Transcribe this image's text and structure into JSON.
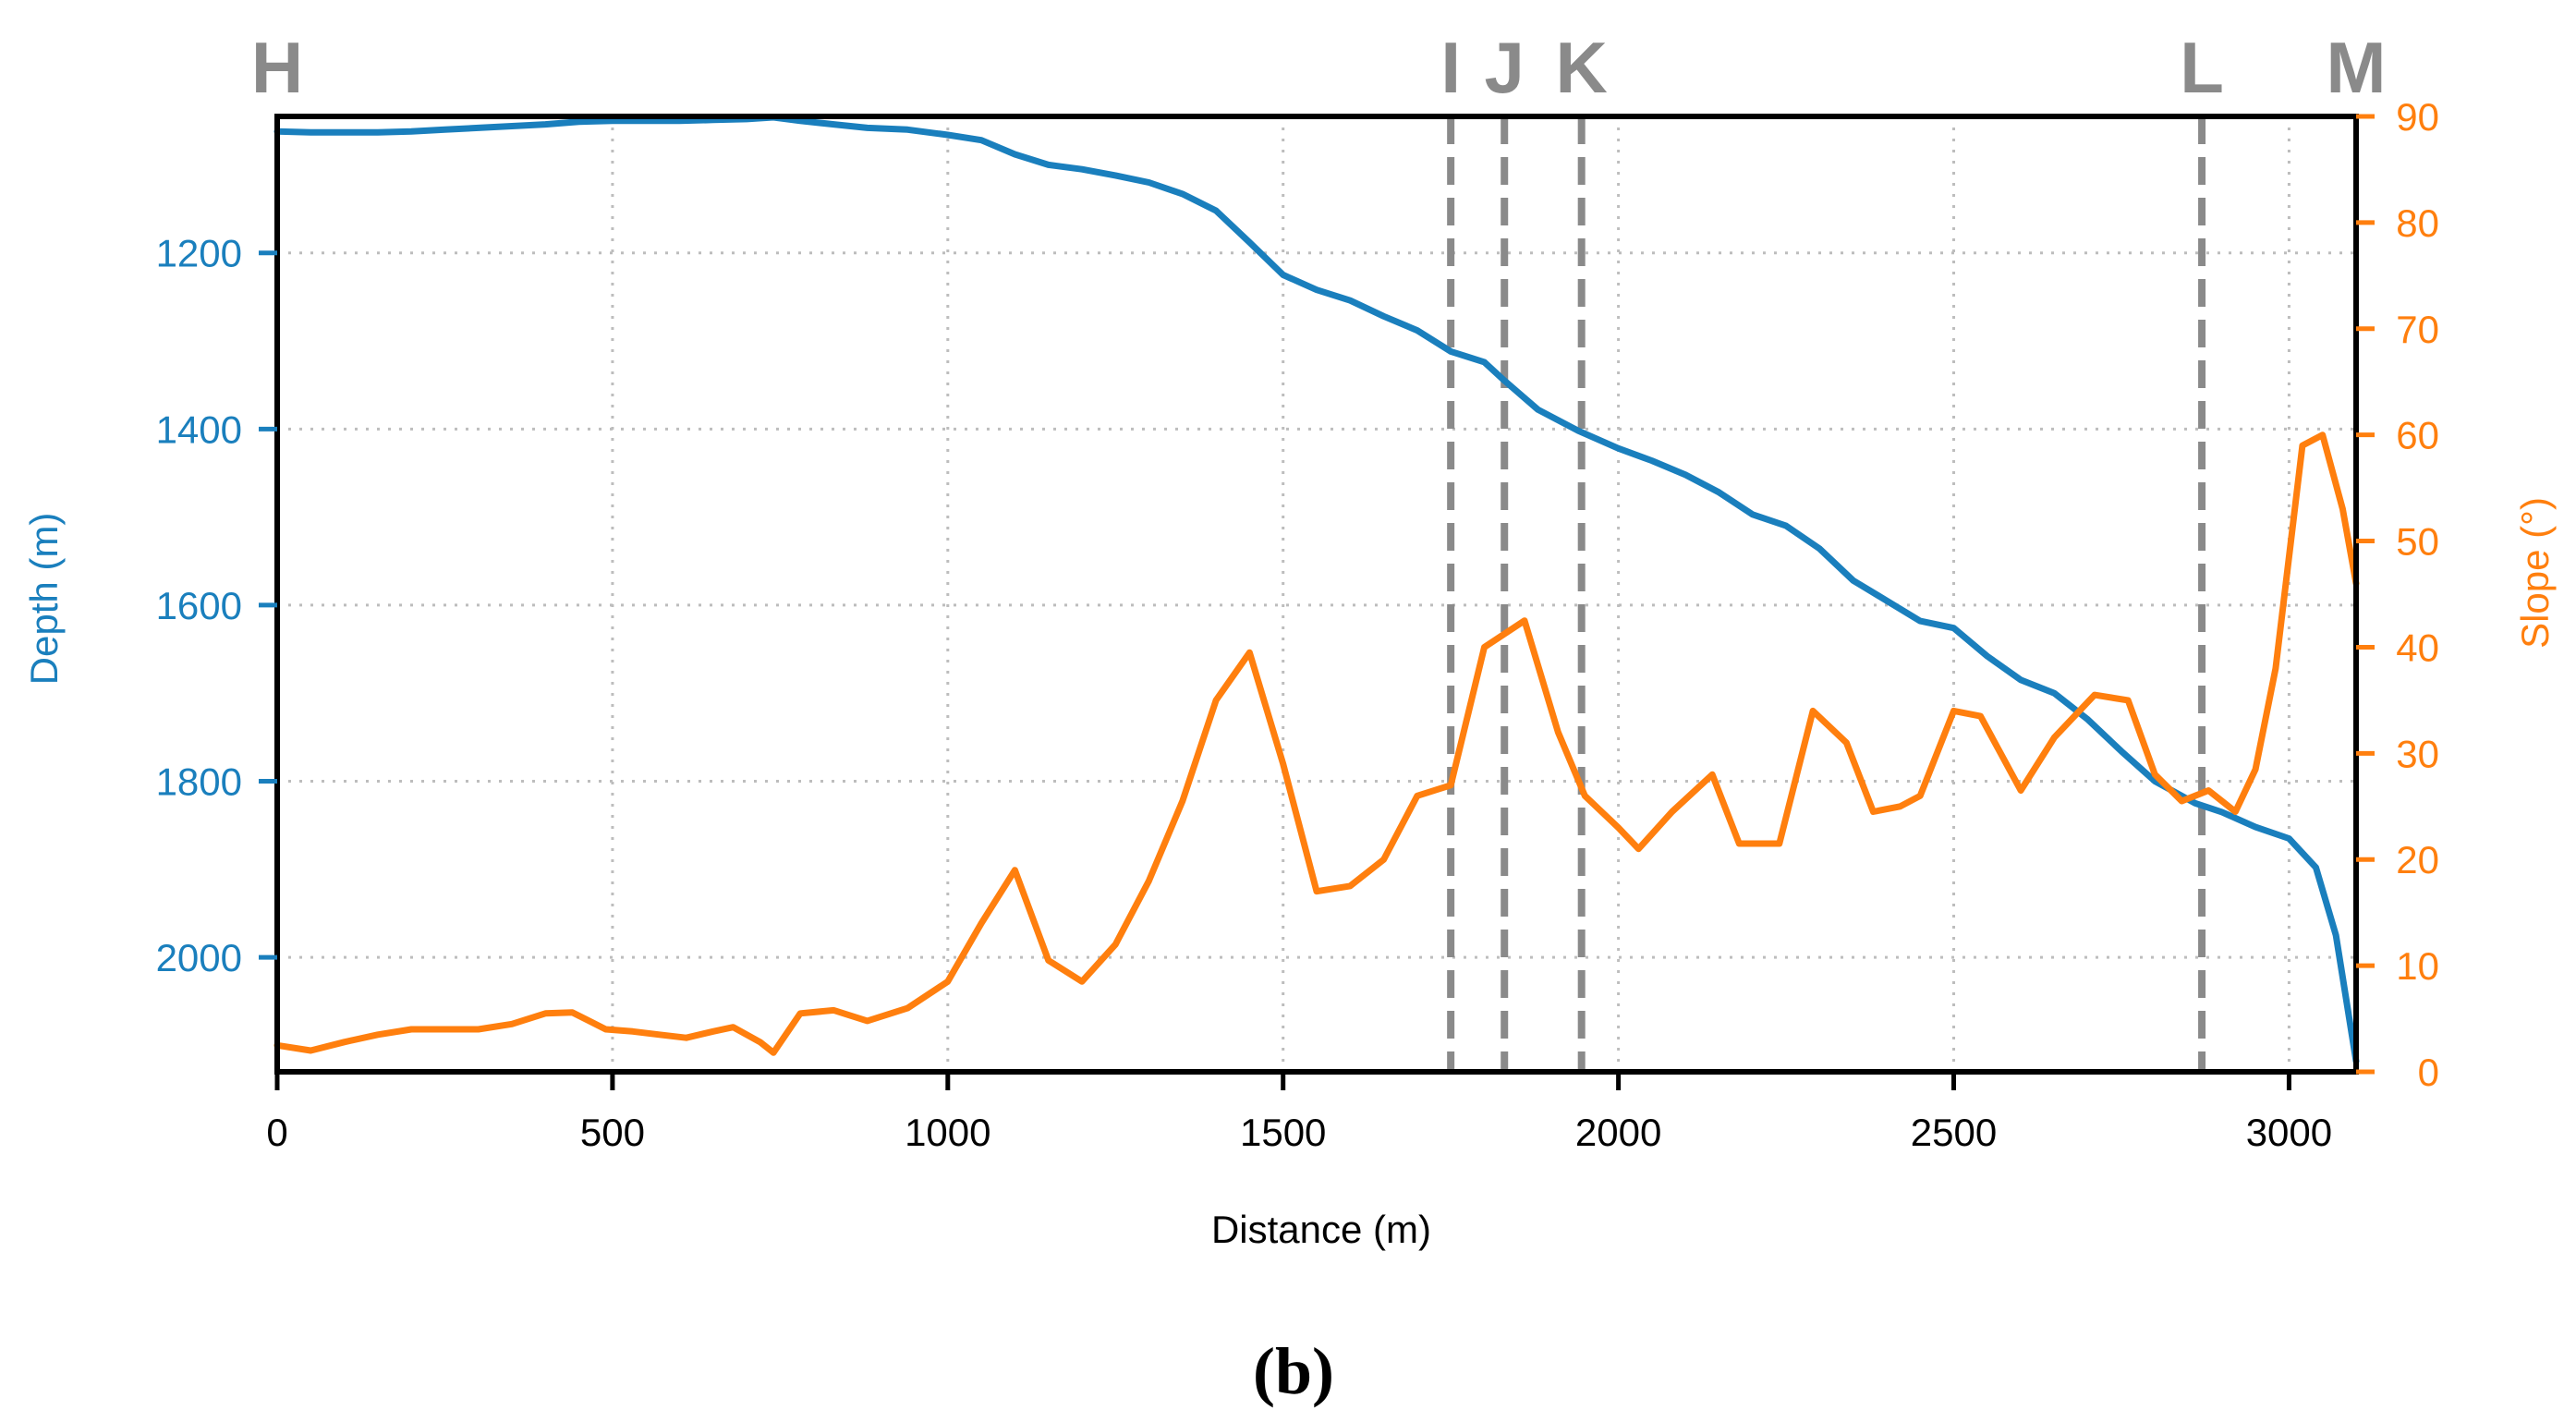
{
  "chart_data": {
    "type": "line",
    "panel_label": "(b)",
    "xlabel": "Distance (m)",
    "ylabel_left": "Depth (m)",
    "ylabel_right": "Slope (°)",
    "xlim": [
      0,
      3100
    ],
    "ylim_left_depth": [
      1045,
      2130
    ],
    "ylim_right_slope": [
      0,
      90
    ],
    "x_ticks": [
      "0",
      "500",
      "1000",
      "1500",
      "2000",
      "2500",
      "3000"
    ],
    "x_tick_values": [
      0,
      500,
      1000,
      1500,
      2000,
      2500,
      3000
    ],
    "left_ticks": [
      "1200",
      "1400",
      "1600",
      "1800",
      "2000"
    ],
    "left_tick_values": [
      1200,
      1400,
      1600,
      1800,
      2000
    ],
    "right_ticks": [
      "0",
      "10",
      "20",
      "30",
      "40",
      "50",
      "60",
      "70",
      "80",
      "90"
    ],
    "right_tick_values": [
      0,
      10,
      20,
      30,
      40,
      50,
      60,
      70,
      80,
      90
    ],
    "grid": true,
    "colors": {
      "depth": "#1a7fbd",
      "slope": "#ff7f0e",
      "markers": "#8a8a8a",
      "grid": "#bdbdbd",
      "frame": "#000000"
    },
    "markers": [
      {
        "label": "H",
        "x": 0,
        "line": false
      },
      {
        "label": "I",
        "x": 1750,
        "line": true
      },
      {
        "label": "J",
        "x": 1830,
        "line": true
      },
      {
        "label": "K",
        "x": 1945,
        "line": true
      },
      {
        "label": "L",
        "x": 2870,
        "line": true
      },
      {
        "label": "M",
        "x": 3100,
        "line": false
      }
    ],
    "series": [
      {
        "name": "Depth",
        "axis": "left",
        "x": [
          0,
          50,
          100,
          150,
          200,
          250,
          300,
          350,
          400,
          450,
          500,
          550,
          600,
          650,
          700,
          740,
          780,
          830,
          880,
          940,
          1000,
          1050,
          1100,
          1150,
          1200,
          1250,
          1300,
          1350,
          1400,
          1450,
          1500,
          1550,
          1600,
          1650,
          1700,
          1750,
          1800,
          1830,
          1880,
          1940,
          2000,
          2050,
          2100,
          2150,
          2200,
          2250,
          2300,
          2350,
          2400,
          2450,
          2500,
          2550,
          2600,
          2650,
          2700,
          2750,
          2800,
          2860,
          2900,
          2950,
          3000,
          3040,
          3070,
          3100
        ],
        "values": [
          1062,
          1063,
          1063,
          1063,
          1062,
          1060,
          1058,
          1056,
          1054,
          1051,
          1050,
          1050,
          1050,
          1049,
          1048,
          1046,
          1050,
          1054,
          1058,
          1060,
          1066,
          1072,
          1088,
          1100,
          1105,
          1112,
          1120,
          1133,
          1152,
          1188,
          1225,
          1242,
          1254,
          1272,
          1288,
          1312,
          1324,
          1345,
          1378,
          1402,
          1422,
          1436,
          1452,
          1472,
          1497,
          1510,
          1536,
          1572,
          1595,
          1618,
          1626,
          1658,
          1685,
          1700,
          1730,
          1766,
          1800,
          1825,
          1835,
          1852,
          1865,
          1898,
          1975,
          2118
        ]
      },
      {
        "name": "Slope",
        "axis": "right",
        "x": [
          0,
          50,
          100,
          150,
          200,
          250,
          300,
          350,
          400,
          440,
          490,
          530,
          570,
          610,
          650,
          680,
          720,
          740,
          780,
          830,
          880,
          940,
          1000,
          1050,
          1100,
          1150,
          1200,
          1250,
          1300,
          1350,
          1400,
          1450,
          1500,
          1550,
          1600,
          1650,
          1700,
          1750,
          1800,
          1860,
          1910,
          1950,
          2000,
          2030,
          2080,
          2140,
          2180,
          2240,
          2290,
          2340,
          2380,
          2420,
          2450,
          2500,
          2540,
          2600,
          2650,
          2710,
          2760,
          2800,
          2840,
          2880,
          2920,
          2950,
          2980,
          3020,
          3050,
          3080,
          3100
        ],
        "values": [
          2.5,
          2.0,
          2.8,
          3.5,
          4.0,
          4.0,
          4.0,
          4.5,
          5.5,
          5.6,
          4.0,
          3.8,
          3.5,
          3.2,
          3.8,
          4.2,
          2.8,
          1.8,
          5.5,
          5.8,
          4.8,
          6.0,
          8.5,
          14.0,
          19.0,
          10.5,
          8.5,
          12.0,
          18.0,
          25.5,
          35.0,
          39.5,
          29.0,
          17.0,
          17.5,
          20.0,
          26.0,
          27.0,
          40.0,
          42.5,
          32.0,
          26.0,
          23.0,
          21.0,
          24.5,
          28.0,
          21.5,
          21.5,
          34.0,
          31.0,
          24.5,
          25.0,
          26.0,
          34.0,
          33.5,
          26.5,
          31.5,
          35.5,
          35.0,
          28.0,
          25.5,
          26.5,
          24.5,
          28.5,
          38.0,
          59.0,
          60.0,
          53.0,
          46.0
        ]
      }
    ]
  }
}
